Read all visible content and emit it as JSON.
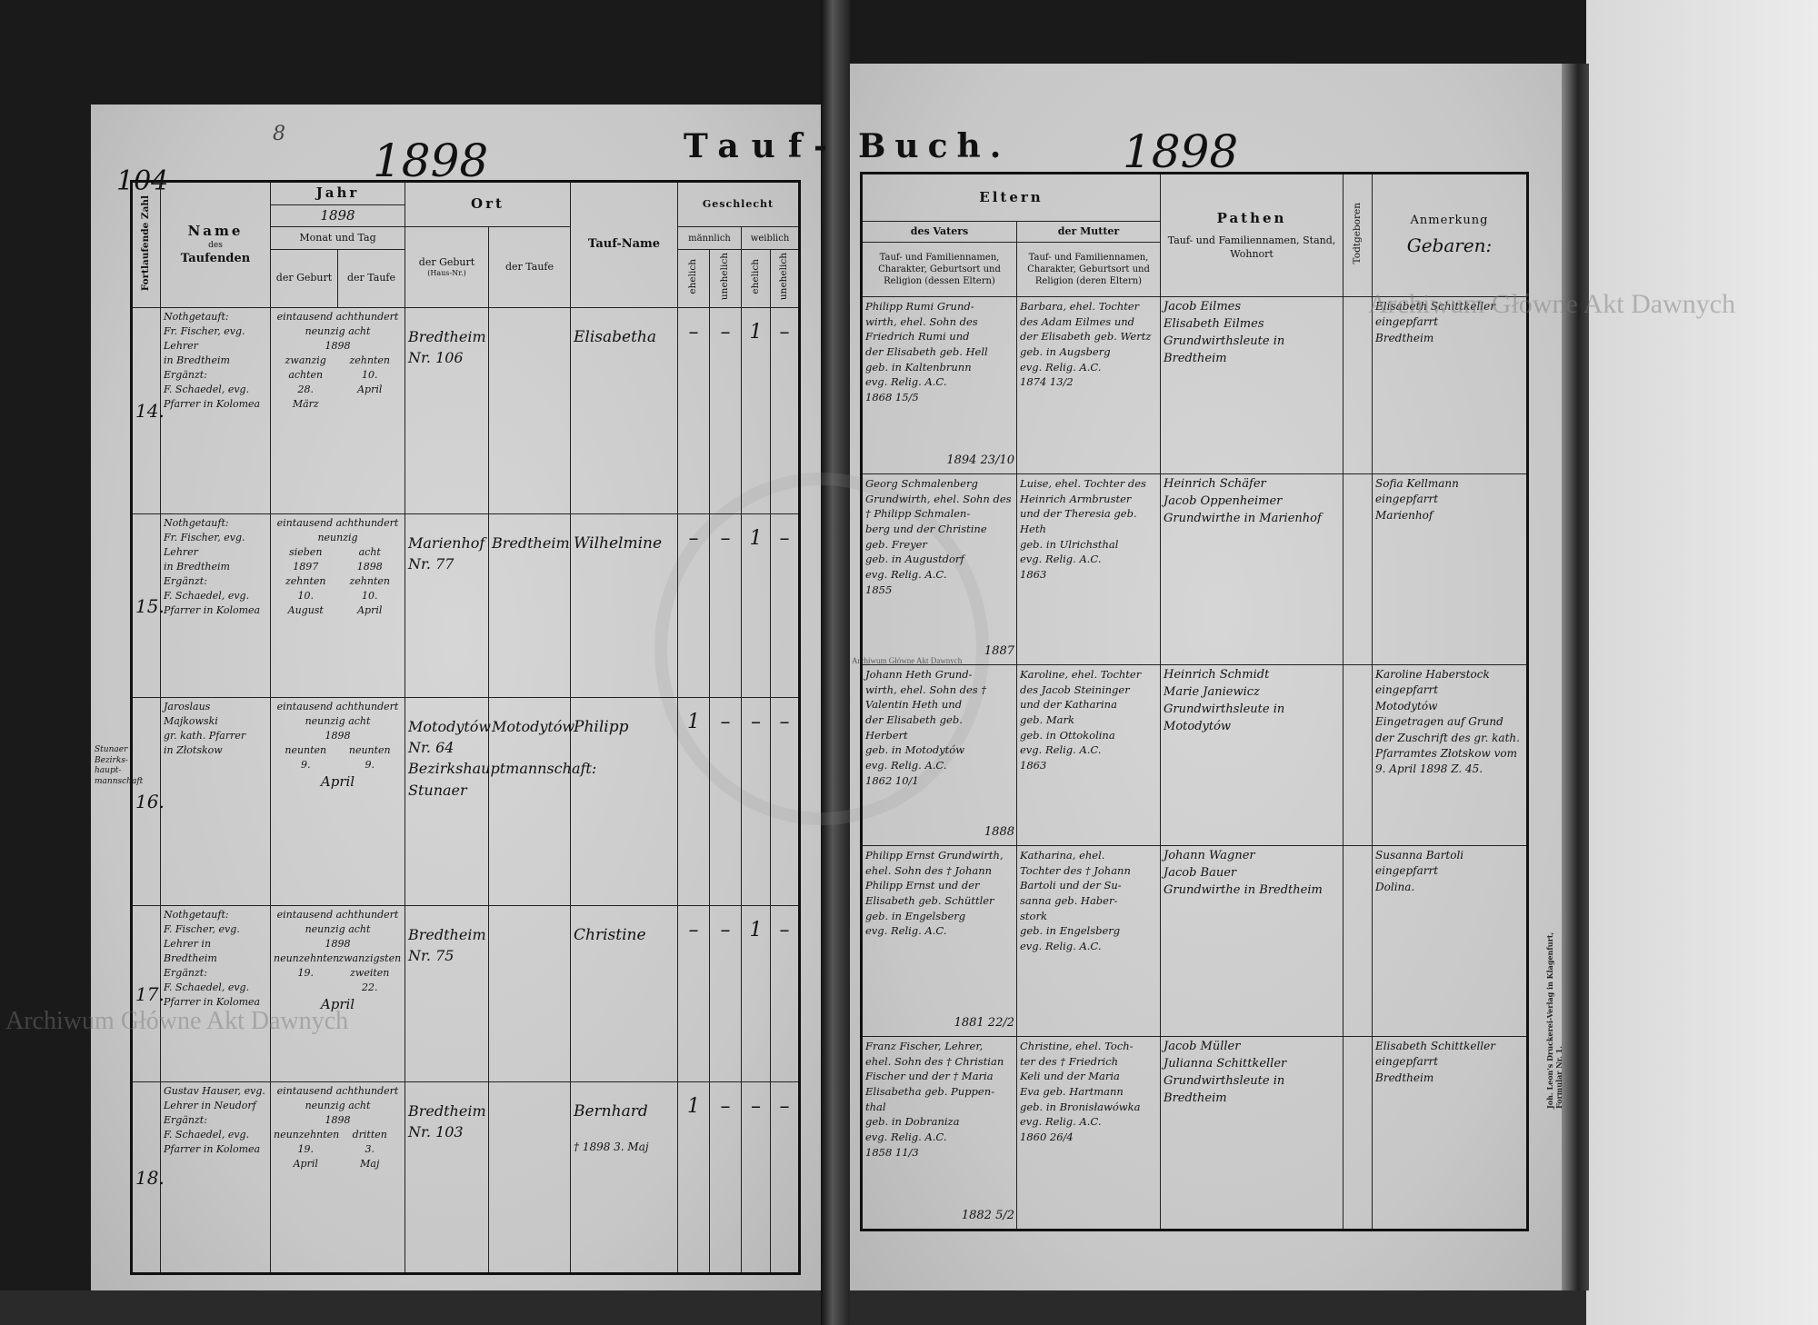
{
  "document": {
    "left_page_number": "104",
    "pencil_mark": "8",
    "year_left": "1898",
    "year_right": "1898",
    "title_left": "Tauf-",
    "title_right": "Buch."
  },
  "left_table": {
    "headers": {
      "running_number": "Fortlaufende Zahl",
      "name_line1": "Name",
      "name_line2": "des",
      "name_line3": "Taufenden",
      "year": "Jahr",
      "year_value": "1898",
      "month_day": "Monat und Tag",
      "of_birth": "der Geburt",
      "of_baptism": "der Taufe",
      "place": "Ort",
      "place_birth": "der Geburt",
      "place_birth_note": "(Haus-Nr.)",
      "place_baptism": "der Taufe",
      "baptismal_name": "Tauf-Name",
      "sex": "Geschlecht",
      "male": "männlich",
      "female": "weiblich",
      "legit": "ehelich",
      "illegit": "unehelich"
    },
    "rows": [
      {
        "number": "14.",
        "margin": "",
        "baptizer": "Nothgetauft:\nFr. Fischer, evg. Lehrer\nin Bredtheim\nErgänzt:\nF. Schaedel, evg.\nPfarrer in Kolomea",
        "year_words": "eintausend achthundert\nneunzig acht\n1898",
        "birth_date": "zwanzig\nachten\n28.\nMärz",
        "baptism_date": "zehnten\n10.\nApril",
        "month": "",
        "place_birth": "Bredtheim\nNr. 106",
        "place_baptism": "",
        "name": "Elisabetha",
        "name_note": "",
        "sex": [
          "–",
          "–",
          "1",
          "–"
        ]
      },
      {
        "number": "15.",
        "margin": "",
        "baptizer": "Nothgetauft:\nFr. Fischer, evg. Lehrer\nin Bredtheim\nErgänzt:\nF. Schaedel, evg.\nPfarrer in Kolomea",
        "year_words": "eintausend achthundert\nneunzig",
        "birth_date": "sieben\n1897\nzehnten\n10.\nAugust",
        "baptism_date": "acht\n1898\nzehnten\n10.\nApril",
        "month": "",
        "place_birth": "Marienhof\nNr. 77",
        "place_baptism": "Bredtheim",
        "name": "Wilhelmine",
        "name_note": "",
        "sex": [
          "–",
          "–",
          "1",
          "–"
        ]
      },
      {
        "number": "16.",
        "margin": "Stunaer\nBezirks-\nhaupt-\nmannschaft",
        "baptizer": "Jaroslaus\nMajkowski\ngr. kath. Pfarrer\nin Złotskow",
        "year_words": "eintausend achthundert\nneunzig acht\n1898",
        "birth_date": "neunten\n9.",
        "baptism_date": "neunten\n9.",
        "month": "April",
        "place_birth": "Motodytów\nNr. 64\nBezirkshauptmannschaft:\nStunaer",
        "place_baptism": "Motodytów",
        "name": "Philipp",
        "name_note": "",
        "sex": [
          "1",
          "–",
          "–",
          "–"
        ]
      },
      {
        "number": "17.",
        "margin": "",
        "baptizer": "Nothgetauft:\nF. Fischer, evg.\nLehrer in Bredtheim\nErgänzt:\nF. Schaedel, evg.\nPfarrer in Kolomea",
        "year_words": "eintausend achthundert\nneunzig acht\n1898",
        "birth_date": "neunzehnten\n19.",
        "baptism_date": "zwanzigsten\nzweiten\n22.",
        "month": "April",
        "place_birth": "Bredtheim\nNr. 75",
        "place_baptism": "",
        "name": "Christine",
        "name_note": "",
        "sex": [
          "–",
          "–",
          "1",
          "–"
        ]
      },
      {
        "number": "18.",
        "margin": "",
        "baptizer": "Gustav Hauser, evg.\nLehrer in Neudorf\nErgänzt:\nF. Schaedel, evg.\nPfarrer in Kolomea",
        "year_words": "eintausend achthundert\nneunzig acht\n1898",
        "birth_date": "neunzehnten\n19.\nApril",
        "baptism_date": "dritten\n3.\nMaj",
        "month": "",
        "place_birth": "Bredtheim\nNr. 103",
        "place_baptism": "",
        "name": "Bernhard",
        "name_note": "† 1898 3. Maj",
        "sex": [
          "1",
          "–",
          "–",
          "–"
        ]
      }
    ]
  },
  "right_table": {
    "headers": {
      "parents": "Eltern",
      "father": "des Vaters",
      "mother": "der Mutter",
      "father_desc": "Tauf- und Familiennamen, Charakter, Geburtsort und Religion (dessen Eltern)",
      "mother_desc": "Tauf- und Familiennamen, Charakter, Geburtsort und Religion (deren Eltern)",
      "godparents": "Pathen",
      "godparents_desc": "Tauf- und Familiennamen, Stand, Wohnort",
      "stillborn": "Todtgeboren",
      "remarks": "Anmerkung",
      "remarks_handwritten": "Gebaren:"
    },
    "rows": [
      {
        "father": "Philipp Rumi Grund-\nwirth, ehel. Sohn des\nFriedrich Rumi und\nder Elisabeth geb. Hell\ngeb. in Kaltenbrunn\nevg. Relig. A.C.\n1868 15/5",
        "marriage": "1894 23/10",
        "mother": "Barbara, ehel. Tochter\ndes Adam Eilmes und\nder Elisabeth geb. Wertz\ngeb. in Augsberg\nevg. Relig. A.C.\n1874 13/2",
        "godparents": "Jacob Eilmes\nElisabeth Eilmes\nGrundwirthsleute in\nBredtheim",
        "stillborn": "",
        "remarks": "Elisabeth Schittkeller\neingepfarrt\nBredtheim"
      },
      {
        "father": "Georg Schmalenberg\nGrundwirth, ehel. Sohn des\n† Philipp Schmalen-\nberg und der Christine\ngeb. Freyer\ngeb. in Augustdorf\nevg. Relig. A.C.\n1855",
        "marriage": "1887",
        "mother": "Luise, ehel. Tochter des\nHeinrich Armbruster\nund der Theresia geb.\nHeth\ngeb. in Ulrichsthal\nevg. Relig. A.C.\n1863",
        "godparents": "Heinrich Schäfer\nJacob Oppenheimer\nGrundwirthe in Marienhof",
        "stillborn": "",
        "remarks": "Sofia Kellmann\neingepfarrt\nMarienhof"
      },
      {
        "father": "Johann Heth Grund-\nwirth, ehel. Sohn des †\nValentin Heth und\nder Elisabeth geb.\nHerbert\ngeb. in Motodytów\nevg. Relig. A.C.\n1862 10/1",
        "marriage": "1888",
        "mother": "Karoline, ehel. Tochter\ndes Jacob Steininger\nund der Katharina\ngeb. Mark\ngeb. in Ottokolina\nevg. Relig. A.C.\n1863",
        "godparents": "Heinrich Schmidt\nMarie Janiewicz\nGrundwirthsleute in\nMotodytów",
        "stillborn": "",
        "remarks": "Karoline Haberstock\neingepfarrt\nMotodytów\nEingetragen auf Grund der Zuschrift des gr. kath. Pfarramtes Złotskow vom 9. April 1898 Z. 45."
      },
      {
        "father": "Philipp Ernst Grundwirth,\nehel. Sohn des † Johann\nPhilipp Ernst und der\nElisabeth geb. Schüttler\ngeb. in Engelsberg\nevg. Relig. A.C.",
        "marriage": "1881 22/2",
        "mother": "Katharina, ehel.\nTochter des † Johann\nBartoli und der Su-\nsanna geb. Haber-\nstork\ngeb. in Engelsberg\nevg. Relig. A.C.",
        "godparents": "Johann Wagner\nJacob Bauer\nGrundwirthe in Bredtheim",
        "stillborn": "",
        "remarks": "Susanna Bartoli\neingepfarrt\nDolina."
      },
      {
        "father": "Franz Fischer, Lehrer,\nehel. Sohn des † Christian\nFischer und der † Maria\nElisabetha geb. Puppen-\nthal\ngeb. in Dobraniza\nevg. Relig. A.C.\n1858 11/3",
        "marriage": "1882 5/2",
        "mother": "Christine, ehel. Toch-\nter des † Friedrich\nKeli und der Maria\nEva geb. Hartmann\ngeb. in Bronisławówka\nevg. Relig. A.C.\n1860 26/4",
        "godparents": "Jacob Müller\nJulianna Schittkeller\nGrundwirthsleute in\nBredtheim",
        "stillborn": "",
        "remarks": "Elisabeth Schittkeller\neingepfarrt\nBredtheim"
      }
    ]
  },
  "printer_imprint": "Joh. Leon's Druckerei-Verlag in Klagenfurt, Formular Nr. 1.",
  "watermarks": {
    "top_right": "Archiwum Główne Akt Dawnych",
    "bottom_left": "Archiwum Główne Akt Dawnych",
    "center": "Archiwum Główne Akt Dawnych"
  },
  "colors": {
    "paper": "#cbcbcb",
    "ink": "#121212",
    "background": "#1a1a1a"
  }
}
